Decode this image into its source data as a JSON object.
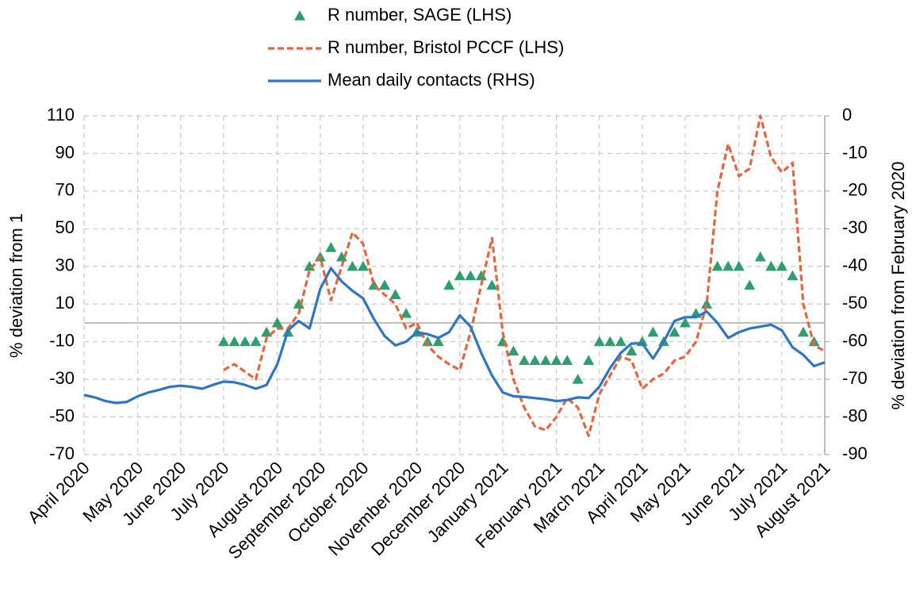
{
  "chart_data": {
    "type": "line",
    "categories": [
      "April 2020",
      null,
      null,
      null,
      null,
      "May 2020",
      null,
      null,
      null,
      "June 2020",
      null,
      null,
      null,
      "July 2020",
      null,
      null,
      null,
      null,
      "August 2020",
      null,
      null,
      null,
      "September 2020",
      null,
      null,
      null,
      "October 2020",
      null,
      null,
      null,
      null,
      "November 2020",
      null,
      null,
      null,
      "December 2020",
      null,
      null,
      null,
      "January 2021",
      null,
      null,
      null,
      null,
      "February 2021",
      null,
      null,
      null,
      "March 2021",
      null,
      null,
      null,
      "April 2021",
      null,
      null,
      null,
      "May 2021",
      null,
      null,
      null,
      null,
      "June 2021",
      null,
      null,
      null,
      "July 2021",
      null,
      null,
      null,
      "August 2021"
    ],
    "series": [
      {
        "name": "R number, SAGE (LHS)",
        "color": "#2e9e6e",
        "marker": "triangle",
        "values": [
          null,
          null,
          null,
          null,
          null,
          null,
          null,
          null,
          null,
          null,
          null,
          null,
          null,
          -10,
          -10,
          -10,
          -10,
          -5,
          0,
          -5,
          10,
          30,
          35,
          40,
          35,
          30,
          30,
          20,
          20,
          15,
          5,
          -5,
          -10,
          -10,
          20,
          25,
          25,
          25,
          20,
          -10,
          -15,
          -20,
          -20,
          -20,
          -20,
          -20,
          -30,
          -20,
          -10,
          -10,
          -10,
          -15,
          -10,
          -5,
          -10,
          -5,
          0,
          5,
          10,
          30,
          30,
          30,
          20,
          35,
          30,
          30,
          25,
          -5,
          -10,
          null
        ]
      },
      {
        "name": "R number, Bristol PCCF (LHS)",
        "color": "#e8643c",
        "line_style": "dashed",
        "values": [
          null,
          null,
          null,
          null,
          null,
          null,
          null,
          null,
          null,
          null,
          null,
          null,
          null,
          -25,
          -22,
          -26,
          -30,
          -8,
          -3,
          -3,
          5,
          28,
          35,
          12,
          30,
          48,
          42,
          20,
          15,
          10,
          -3,
          0,
          -12,
          -18,
          -22,
          -25,
          -5,
          20,
          45,
          -5,
          -30,
          -45,
          -55,
          -57,
          -50,
          -40,
          -45,
          -60,
          -38,
          -28,
          -18,
          -20,
          -35,
          -30,
          -27,
          -20,
          -18,
          -10,
          10,
          70,
          95,
          78,
          82,
          110,
          88,
          80,
          85,
          10,
          -12,
          -15
        ]
      },
      {
        "name": "Mean daily contacts (RHS)",
        "color": "#2e75c6",
        "line_style": "solid",
        "axis": "y2",
        "values": [
          -74.2,
          -74.8,
          -75.8,
          -76.3,
          -76,
          -74.5,
          -73.5,
          -72.8,
          -72,
          -71.7,
          -72,
          -72.5,
          -71.5,
          -70.6,
          -70.8,
          -71.5,
          -72.5,
          -71.5,
          -66,
          -57,
          -54.5,
          -56.5,
          -46,
          -40.5,
          -44,
          -46.5,
          -48.5,
          -54,
          -58.5,
          -61,
          -60,
          -57.5,
          -58,
          -59,
          -57.5,
          -53,
          -56,
          -63,
          -69,
          -73.5,
          -74.5,
          -74.7,
          -75,
          -75.3,
          -75.8,
          -75.5,
          -74.8,
          -75,
          -72,
          -67,
          -63,
          -60.5,
          -60.5,
          -64.5,
          -60,
          -54.5,
          -53.5,
          -53.5,
          -52,
          -55,
          -59,
          -57.5,
          -56.5,
          -56,
          -55.5,
          -57,
          -61.5,
          -63.5,
          -66.5,
          -65.5
        ]
      }
    ],
    "ylabel": "% deviation from 1",
    "y2label": "% deviation from February 2020",
    "ylim": [
      -70,
      110
    ],
    "yticks": [
      -70,
      -50,
      -30,
      -10,
      10,
      30,
      50,
      70,
      90,
      110
    ],
    "y2lim": [
      -90,
      0
    ],
    "y2ticks": [
      -90,
      -80,
      -70,
      -60,
      -50,
      -40,
      -30,
      -20,
      -10,
      0
    ],
    "grid": true,
    "zero_line": true,
    "legend": "top"
  }
}
